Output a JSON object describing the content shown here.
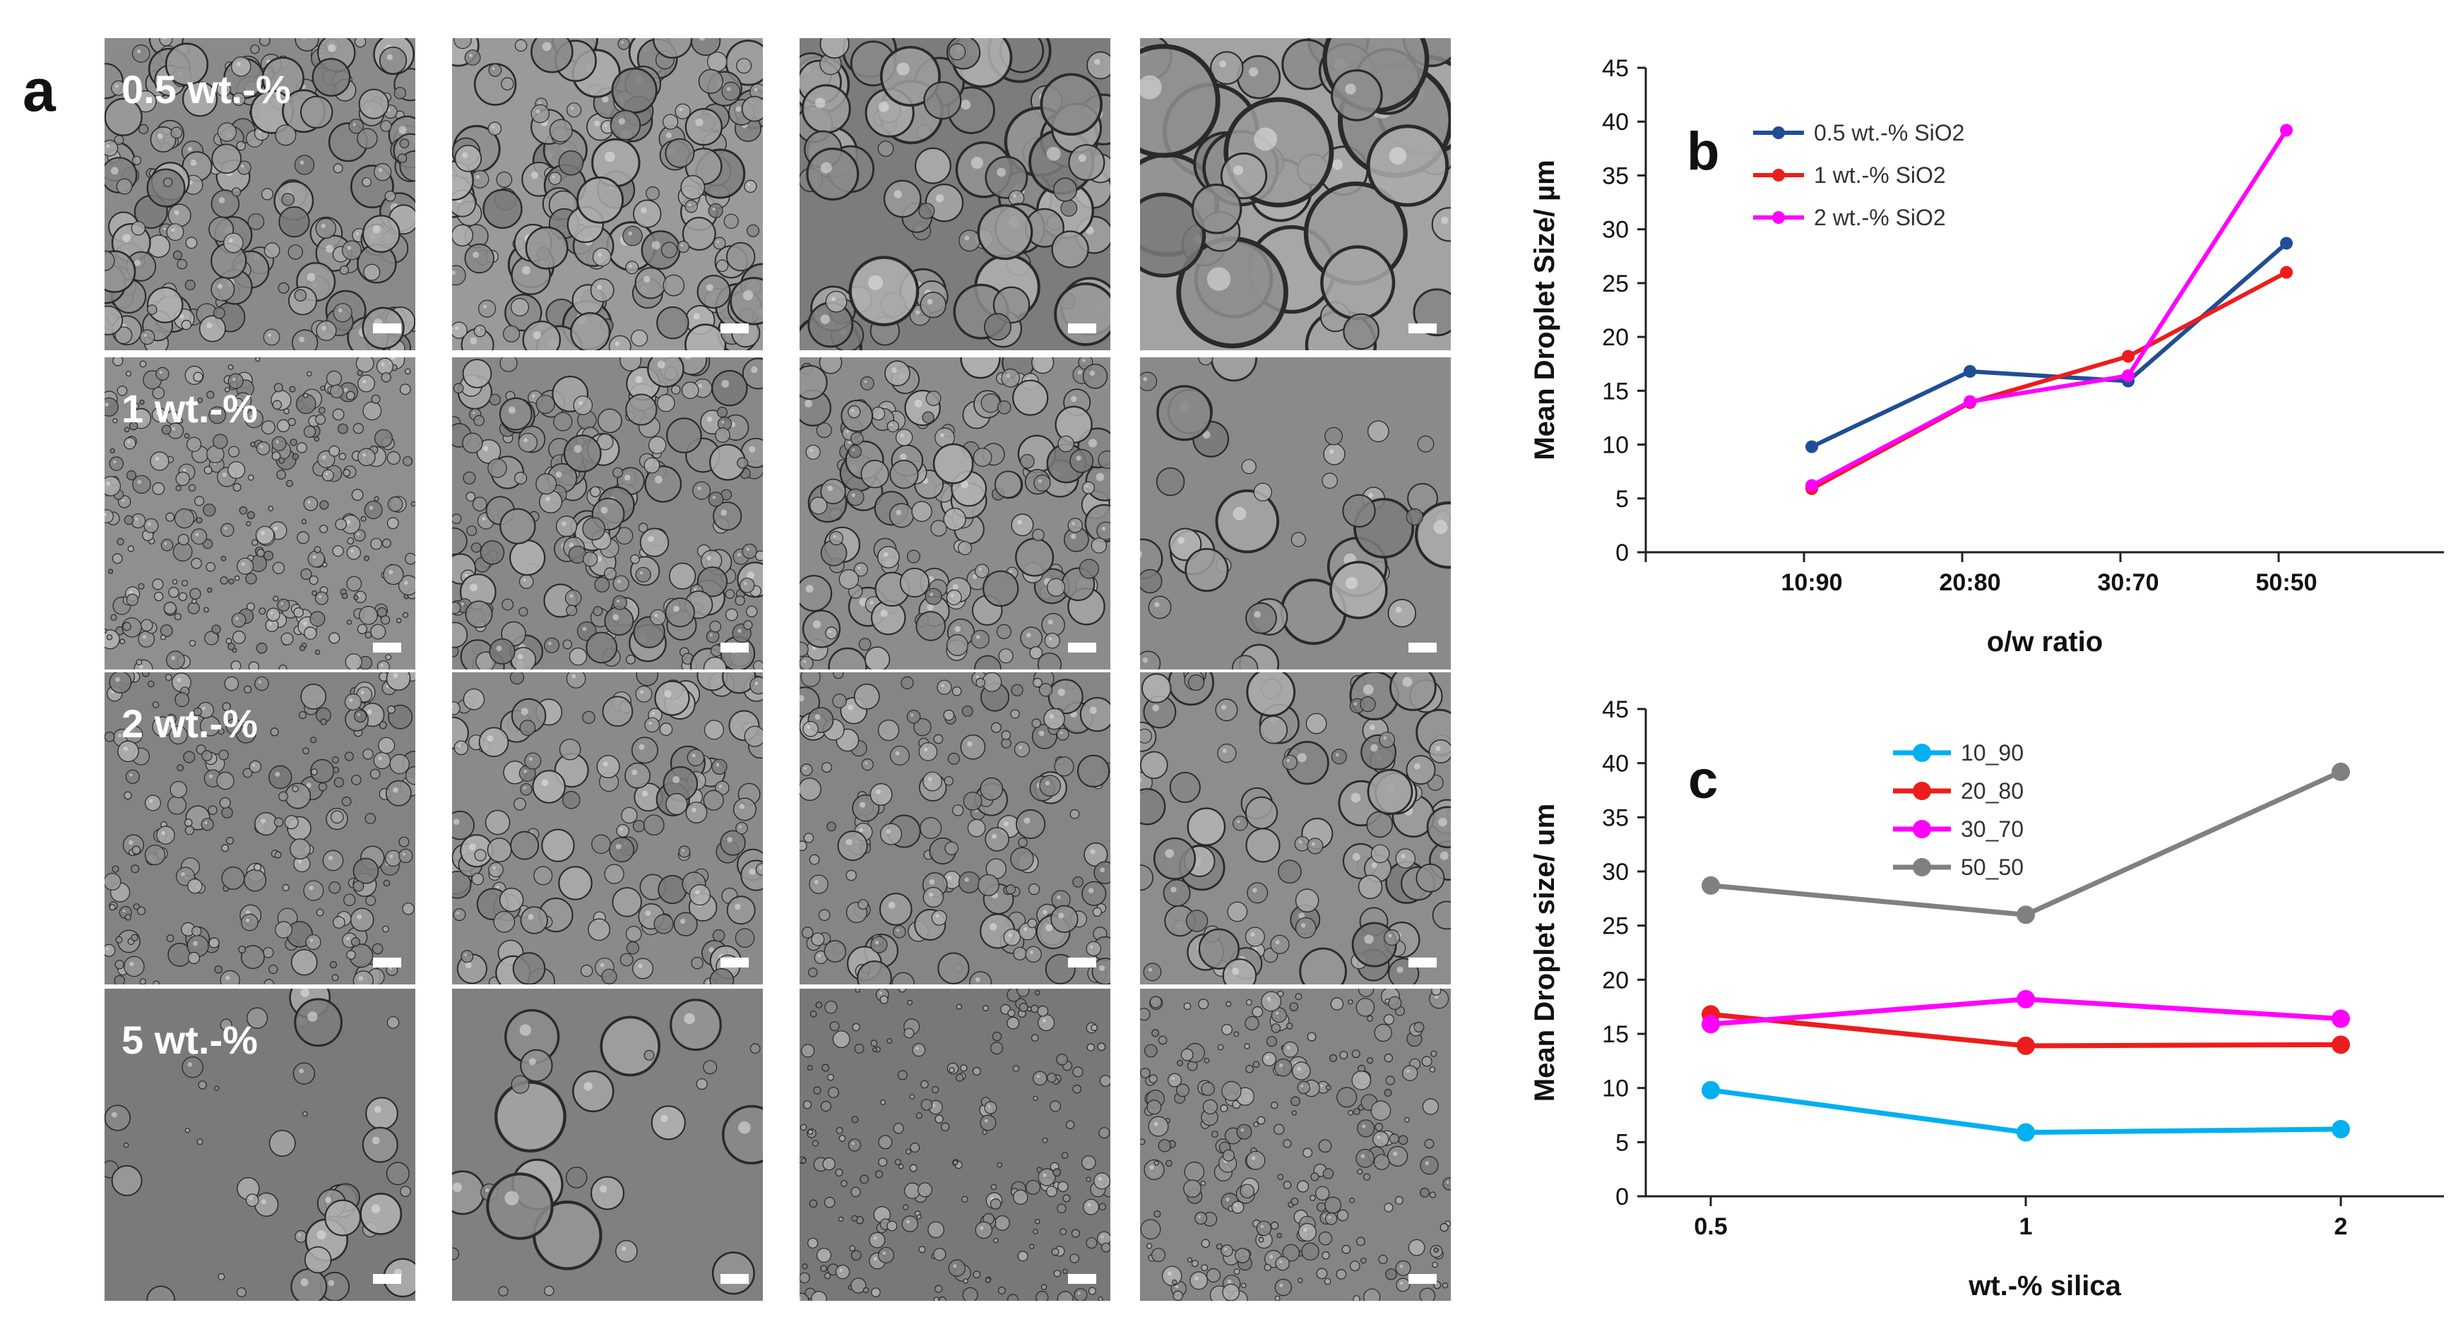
{
  "figure": {
    "panel_a_letter": "a",
    "row_labels": [
      "0.5 wt.-%",
      "1 wt.-%",
      "2 wt.-%",
      "5 wt.-%"
    ]
  },
  "colors": {
    "series_b": [
      "#1f4e96",
      "#ee1c1c",
      "#ff00ff"
    ],
    "series_c": [
      "#00b0f0",
      "#ee1c1c",
      "#ff00ff",
      "#808080"
    ]
  },
  "chart_data": [
    {
      "panel": "b",
      "type": "line",
      "categories": [
        "10:90",
        "20:80",
        "30:70",
        "50:50"
      ],
      "xlabel": "o/w ratio",
      "ylabel": "Mean Droplet Size/ µm",
      "ylim": [
        0,
        45
      ],
      "yticks": [
        0,
        5,
        10,
        15,
        20,
        25,
        30,
        35,
        40,
        45
      ],
      "grid": false,
      "legend_position": "top-left",
      "series": [
        {
          "name": "0.5 wt.-% SiO2",
          "values": [
            9.8,
            16.8,
            15.9,
            28.7
          ]
        },
        {
          "name": "1 wt.-% SiO2",
          "values": [
            5.9,
            13.9,
            18.2,
            26.0
          ]
        },
        {
          "name": "2 wt.-% SiO2",
          "values": [
            6.2,
            14.0,
            16.4,
            39.2
          ]
        }
      ]
    },
    {
      "panel": "c",
      "type": "line",
      "categories": [
        "0.5",
        "1",
        "2"
      ],
      "xlabel": "wt.-% silica",
      "ylabel": "Mean Droplet size/ um",
      "ylim": [
        0,
        45
      ],
      "yticks": [
        0,
        5,
        10,
        15,
        20,
        25,
        30,
        35,
        40,
        45
      ],
      "grid": false,
      "legend_position": "top-left",
      "series": [
        {
          "name": "10_90",
          "values": [
            9.8,
            5.9,
            6.2
          ]
        },
        {
          "name": "20_80",
          "values": [
            16.8,
            13.9,
            14.0
          ]
        },
        {
          "name": "30_70",
          "values": [
            15.9,
            18.2,
            16.4
          ]
        },
        {
          "name": "50_50",
          "values": [
            28.7,
            26.0,
            39.2
          ]
        }
      ]
    }
  ]
}
